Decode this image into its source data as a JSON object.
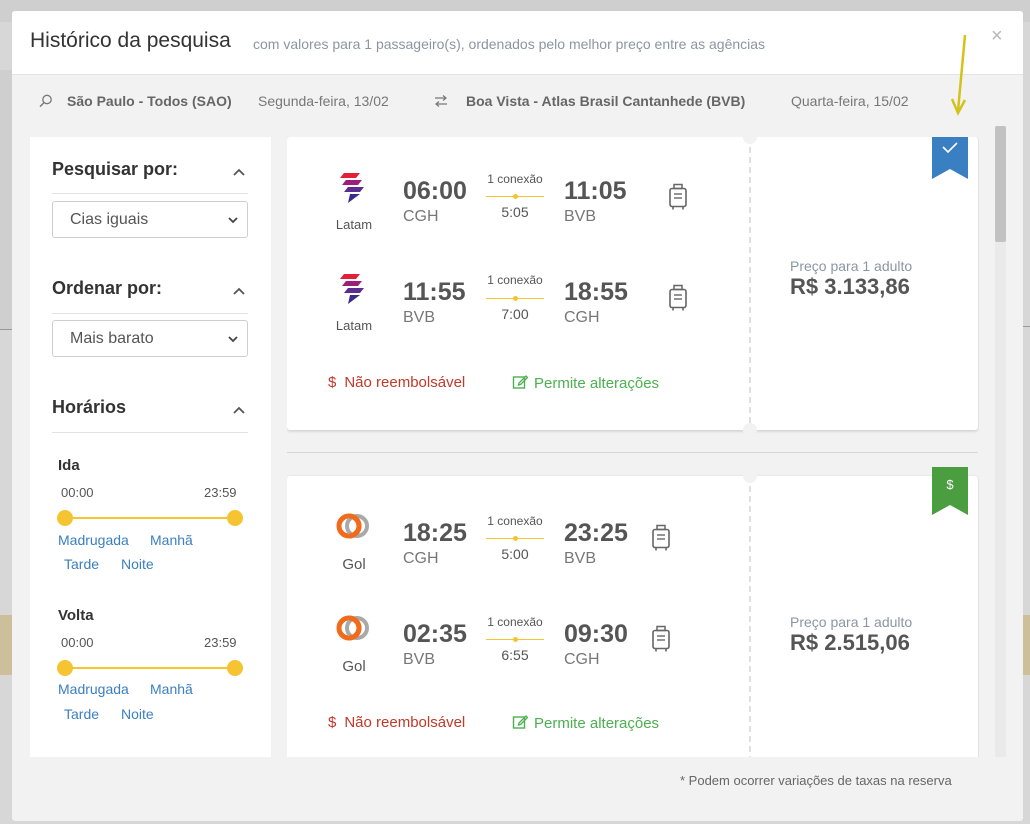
{
  "modal": {
    "title": "Histórico da pesquisa",
    "subtitle": "com valores para 1 passageiro(s), ordenados pelo melhor preço entre as agências",
    "close": "×"
  },
  "route": {
    "origin": "São Paulo - Todos (SAO)",
    "origin_date": "Segunda-feira, 13/02",
    "destination": "Boa Vista - Atlas Brasil Cantanhede (BVB)",
    "destination_date": "Quarta-feira, 15/02"
  },
  "sidebar": {
    "search_by_title": "Pesquisar por:",
    "search_by_value": "Cias iguais",
    "order_by_title": "Ordenar por:",
    "order_by_value": "Mais barato",
    "schedules_title": "Horários",
    "ida": {
      "label": "Ida",
      "min": "00:00",
      "max": "23:59",
      "links": [
        "Madrugada",
        "Manhã",
        "Tarde",
        "Noite"
      ]
    },
    "volta": {
      "label": "Volta",
      "min": "00:00",
      "max": "23:59",
      "links": [
        "Madrugada",
        "Manhã",
        "Tarde",
        "Noite"
      ]
    }
  },
  "results": [
    {
      "airline": "Latam",
      "ribbon_icon": "check-icon",
      "ribbon_color": "#3a7fc1",
      "legs": [
        {
          "dep_time": "06:00",
          "dep_code": "CGH",
          "connections": "1 conexão",
          "duration": "5:05",
          "arr_time": "11:05",
          "arr_code": "BVB"
        },
        {
          "dep_time": "11:55",
          "dep_code": "BVB",
          "connections": "1 conexão",
          "duration": "7:00",
          "arr_time": "18:55",
          "arr_code": "CGH"
        }
      ],
      "refund": "Não reembolsável",
      "changes": "Permite alterações",
      "price_label": "Preço para 1 adulto",
      "price": "R$ 3.133,86"
    },
    {
      "airline": "Gol",
      "ribbon_icon": "dollar-icon",
      "ribbon_color": "#4a9e3f",
      "legs": [
        {
          "dep_time": "18:25",
          "dep_code": "CGH",
          "connections": "1 conexão",
          "duration": "5:00",
          "arr_time": "23:25",
          "arr_code": "BVB"
        },
        {
          "dep_time": "02:35",
          "dep_code": "BVB",
          "connections": "1 conexão",
          "duration": "6:55",
          "arr_time": "09:30",
          "arr_code": "CGH"
        }
      ],
      "refund": "Não reembolsável",
      "changes": "Permite alterações",
      "price_label": "Preço para 1 adulto",
      "price": "R$ 2.515,06"
    }
  ],
  "footnote": "* Podem ocorrer variações de taxas na reserva",
  "colors": {
    "accent_yellow": "#f6c431",
    "link_blue": "#3a7fc1",
    "red": "#c0392b",
    "green": "#4caf50"
  }
}
